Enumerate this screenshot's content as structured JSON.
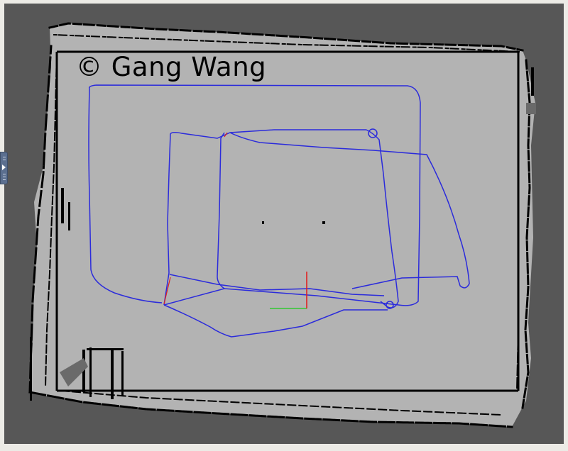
{
  "watermark": {
    "text": "© Gang Wang"
  },
  "map": {
    "unknown_color": "#575757",
    "free_color": "#b3b3b3",
    "wall_color": "#000000",
    "trajectory_color": "#2b2bdb"
  },
  "axes_marker": {
    "x_axis_color": "#32c832",
    "z_axis_color": "#e02020"
  },
  "side_panel": {
    "icon": "expand-panel-icon"
  }
}
